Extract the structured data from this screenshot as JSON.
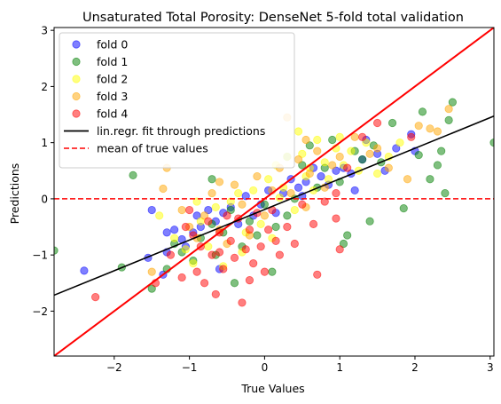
{
  "chart_data": {
    "type": "scatter",
    "title": "Unsaturated Total Porosity: DenseNet 5-fold total validation",
    "xlabel": "True Values",
    "ylabel": "Predictions",
    "xlim": [
      -2.8,
      3.05
    ],
    "ylim": [
      -2.8,
      3.05
    ],
    "x_ticks": [
      -2,
      -1,
      0,
      1,
      2,
      3
    ],
    "y_ticks": [
      -2,
      -1,
      0,
      1,
      2,
      3
    ],
    "tick_labels_x": [
      "−2",
      "−1",
      "0",
      "1",
      "2",
      "3"
    ],
    "tick_labels_y": [
      "−2",
      "−1",
      "0",
      "1",
      "2",
      "3"
    ],
    "grid": false,
    "legend_position": "top-left",
    "identity_line": {
      "color": "#ff0000"
    },
    "fit_line": {
      "label": "lin.regr. fit through predictions",
      "slope": 0.545,
      "intercept": -0.19,
      "color": "#000000"
    },
    "mean_line": {
      "label": "mean of true values",
      "y": 0.0,
      "color": "#ff0000",
      "style": "dashed"
    },
    "series": [
      {
        "name": "fold 0",
        "color": "#0000ff",
        "points": [
          [
            -2.4,
            -1.28
          ],
          [
            -1.55,
            -1.05
          ],
          [
            -1.3,
            -0.6
          ],
          [
            -1.35,
            -1.35
          ],
          [
            -1.3,
            -0.95
          ],
          [
            -1.2,
            -0.55
          ],
          [
            -1.1,
            -0.72
          ],
          [
            -1.05,
            -0.85
          ],
          [
            -0.95,
            -0.6
          ],
          [
            -0.9,
            -0.3
          ],
          [
            -0.85,
            -0.5
          ],
          [
            -0.75,
            -0.2
          ],
          [
            -0.65,
            -0.4
          ],
          [
            -0.55,
            -0.25
          ],
          [
            -0.45,
            -0.15
          ],
          [
            -0.35,
            -0.45
          ],
          [
            -0.25,
            0.05
          ],
          [
            -0.15,
            -0.3
          ],
          [
            -0.05,
            -0.1
          ],
          [
            0.05,
            0.15
          ],
          [
            0.15,
            -0.25
          ],
          [
            0.25,
            0.1
          ],
          [
            0.35,
            0.35
          ],
          [
            0.45,
            0.2
          ],
          [
            0.55,
            0.3
          ],
          [
            0.65,
            0.55
          ],
          [
            0.75,
            0.4
          ],
          [
            0.85,
            0.25
          ],
          [
            0.95,
            0.5
          ],
          [
            1.05,
            0.55
          ],
          [
            1.15,
            0.45
          ],
          [
            1.3,
            0.7
          ],
          [
            1.35,
            1.05
          ],
          [
            1.5,
            0.8
          ],
          [
            1.6,
            0.5
          ],
          [
            1.75,
            0.9
          ],
          [
            1.95,
            1.15
          ],
          [
            2.0,
            0.85
          ],
          [
            -1.5,
            -0.2
          ],
          [
            -0.6,
            -1.25
          ],
          [
            0.5,
            0.05
          ],
          [
            1.2,
            0.15
          ]
        ]
      },
      {
        "name": "fold 1",
        "color": "#008000",
        "points": [
          [
            -2.8,
            -0.92
          ],
          [
            -1.9,
            -1.22
          ],
          [
            -1.75,
            0.42
          ],
          [
            -1.5,
            -1.6
          ],
          [
            -1.3,
            -1.25
          ],
          [
            -1.2,
            -0.8
          ],
          [
            -1.1,
            -0.95
          ],
          [
            -0.95,
            -1.1
          ],
          [
            -0.85,
            -0.7
          ],
          [
            -0.7,
            0.35
          ],
          [
            -0.65,
            -1.0
          ],
          [
            -0.55,
            -0.6
          ],
          [
            -0.45,
            -0.2
          ],
          [
            -0.4,
            -1.5
          ],
          [
            -0.3,
            -0.85
          ],
          [
            -0.2,
            -0.4
          ],
          [
            -0.1,
            -0.65
          ],
          [
            0.0,
            -0.1
          ],
          [
            0.1,
            -1.3
          ],
          [
            0.15,
            -0.5
          ],
          [
            0.3,
            -0.3
          ],
          [
            0.4,
            0.0
          ],
          [
            0.5,
            0.6
          ],
          [
            0.6,
            0.95
          ],
          [
            0.7,
            0.2
          ],
          [
            0.8,
            0.55
          ],
          [
            0.9,
            1.05
          ],
          [
            1.0,
            0.3
          ],
          [
            1.05,
            -0.8
          ],
          [
            1.1,
            -0.65
          ],
          [
            1.2,
            0.85
          ],
          [
            1.3,
            0.7
          ],
          [
            1.4,
            -0.4
          ],
          [
            1.55,
            0.65
          ],
          [
            1.7,
            1.35
          ],
          [
            1.85,
            -0.17
          ],
          [
            2.05,
            0.78
          ],
          [
            2.1,
            1.55
          ],
          [
            2.2,
            0.35
          ],
          [
            2.3,
            0.6
          ],
          [
            2.35,
            0.85
          ],
          [
            2.4,
            0.1
          ],
          [
            2.45,
            1.4
          ],
          [
            2.5,
            1.72
          ],
          [
            3.05,
            1.0
          ],
          [
            -0.7,
            -0.45
          ],
          [
            0.3,
            0.75
          ],
          [
            1.45,
            0.95
          ]
        ]
      },
      {
        "name": "fold 2",
        "color": "#ffff00",
        "points": [
          [
            -1.4,
            -0.3
          ],
          [
            -1.2,
            -0.7
          ],
          [
            -1.05,
            -0.9
          ],
          [
            -0.95,
            -1.15
          ],
          [
            -0.85,
            -0.4
          ],
          [
            -0.75,
            -0.85
          ],
          [
            -0.65,
            -0.15
          ],
          [
            -0.55,
            -1.2
          ],
          [
            -0.45,
            -0.05
          ],
          [
            -0.35,
            0.1
          ],
          [
            -0.25,
            -0.6
          ],
          [
            -0.15,
            0.15
          ],
          [
            -0.05,
            -0.45
          ],
          [
            0.05,
            0.35
          ],
          [
            0.1,
            -0.7
          ],
          [
            0.15,
            0.6
          ],
          [
            0.25,
            0.2
          ],
          [
            0.3,
            0.75
          ],
          [
            0.4,
            -0.2
          ],
          [
            0.5,
            0.8
          ],
          [
            0.55,
            0.4
          ],
          [
            0.65,
            0.15
          ],
          [
            0.7,
            1.05
          ],
          [
            0.8,
            0.65
          ],
          [
            0.85,
            0.35
          ],
          [
            0.95,
            0.9
          ],
          [
            1.0,
            1.1
          ],
          [
            1.05,
            0.6
          ],
          [
            1.15,
            0.85
          ],
          [
            1.25,
            0.5
          ],
          [
            1.35,
            1.0
          ],
          [
            1.5,
            0.45
          ],
          [
            1.65,
            0.75
          ],
          [
            1.8,
            1.0
          ],
          [
            -0.3,
            -0.95
          ],
          [
            0.2,
            0.02
          ],
          [
            0.45,
            1.2
          ],
          [
            0.6,
            0.55
          ],
          [
            -0.9,
            -0.05
          ]
        ]
      },
      {
        "name": "fold 3",
        "color": "#ffa500",
        "points": [
          [
            -1.3,
            0.55
          ],
          [
            -1.35,
            0.18
          ],
          [
            -1.1,
            -0.2
          ],
          [
            -1.0,
            -0.5
          ],
          [
            -0.9,
            -0.7
          ],
          [
            -0.8,
            -0.3
          ],
          [
            -0.7,
            0.1
          ],
          [
            -0.6,
            -0.55
          ],
          [
            -0.5,
            -0.8
          ],
          [
            -0.4,
            0.25
          ],
          [
            -0.3,
            -0.1
          ],
          [
            -0.2,
            -0.65
          ],
          [
            -0.1,
            0.4
          ],
          [
            0.0,
            -0.3
          ],
          [
            0.1,
            0.15
          ],
          [
            0.2,
            0.55
          ],
          [
            0.3,
            1.45
          ],
          [
            0.35,
            0.1
          ],
          [
            0.45,
            0.7
          ],
          [
            0.55,
            -0.15
          ],
          [
            0.6,
            0.45
          ],
          [
            0.7,
            0.85
          ],
          [
            0.8,
            0.2
          ],
          [
            0.9,
            0.6
          ],
          [
            1.0,
            0.75
          ],
          [
            1.2,
            1.1
          ],
          [
            1.4,
            0.8
          ],
          [
            1.5,
            0.9
          ],
          [
            1.65,
            0.55
          ],
          [
            1.9,
            0.35
          ],
          [
            2.05,
            1.3
          ],
          [
            2.2,
            1.25
          ],
          [
            2.3,
            1.2
          ],
          [
            2.45,
            1.6
          ],
          [
            -0.6,
            0.3
          ],
          [
            0.55,
            1.05
          ],
          [
            -1.5,
            -1.3
          ]
        ]
      },
      {
        "name": "fold 4",
        "color": "#ff0000",
        "points": [
          [
            -2.25,
            -1.75
          ],
          [
            -1.45,
            -1.5
          ],
          [
            -1.25,
            -1.0
          ],
          [
            -1.1,
            -1.4
          ],
          [
            -1.05,
            -0.5
          ],
          [
            -1.0,
            -0.2
          ],
          [
            -0.95,
            -0.65
          ],
          [
            -0.9,
            -1.3
          ],
          [
            -0.85,
            -0.85
          ],
          [
            -0.8,
            -1.5
          ],
          [
            -0.75,
            -0.4
          ],
          [
            -0.7,
            -1.0
          ],
          [
            -0.65,
            -1.7
          ],
          [
            -0.6,
            -0.6
          ],
          [
            -0.55,
            -1.25
          ],
          [
            -0.5,
            -0.3
          ],
          [
            -0.45,
            -0.75
          ],
          [
            -0.4,
            -1.05
          ],
          [
            -0.35,
            -0.35
          ],
          [
            -0.3,
            -1.85
          ],
          [
            -0.25,
            -0.9
          ],
          [
            -0.2,
            -0.55
          ],
          [
            -0.15,
            -1.15
          ],
          [
            -0.1,
            -0.25
          ],
          [
            -0.05,
            -0.85
          ],
          [
            0.0,
            -1.3
          ],
          [
            0.05,
            -0.55
          ],
          [
            0.1,
            -0.2
          ],
          [
            0.2,
            -1.0
          ],
          [
            0.3,
            -0.5
          ],
          [
            0.4,
            -0.8
          ],
          [
            0.5,
            -0.1
          ],
          [
            0.65,
            -0.45
          ],
          [
            0.7,
            -1.35
          ],
          [
            0.8,
            -0.05
          ],
          [
            0.95,
            0.1
          ],
          [
            1.0,
            -0.9
          ],
          [
            1.1,
            0.55
          ],
          [
            1.3,
            1.1
          ],
          [
            1.5,
            1.35
          ],
          [
            1.95,
            1.1
          ],
          [
            -0.2,
            -1.45
          ],
          [
            0.15,
            -0.75
          ],
          [
            -0.6,
            -0.95
          ],
          [
            0.95,
            -0.35
          ]
        ]
      }
    ]
  }
}
